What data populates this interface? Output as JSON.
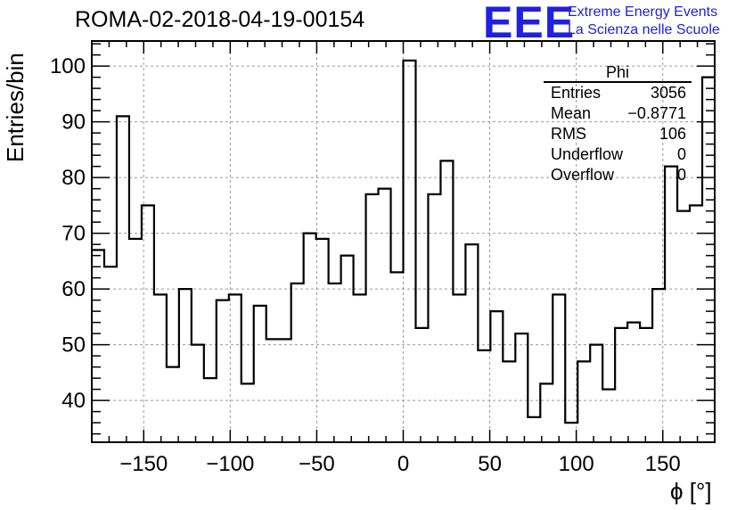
{
  "title": "ROMA-02-2018-04-19-00154",
  "logo": {
    "mark": "EEE",
    "line1": "Extreme Energy Events",
    "line2": "La Scienza nelle Scuole",
    "color": "#2020e0"
  },
  "stats": {
    "name": "Phi",
    "rows": [
      {
        "label": "Entries",
        "value": "3056"
      },
      {
        "label": "Mean",
        "value": "−0.8771"
      },
      {
        "label": "RMS",
        "value": "106"
      },
      {
        "label": "Underflow",
        "value": "0"
      },
      {
        "label": "Overflow",
        "value": "0"
      }
    ]
  },
  "chart_data": {
    "type": "histogram",
    "title": "ROMA-02-2018-04-19-00154",
    "xlabel": "ϕ [°]",
    "ylabel": "Entries/bin",
    "xlim": [
      -180,
      180
    ],
    "ylim": [
      32.5,
      104.5
    ],
    "grid": true,
    "bin_width": 7.2,
    "xticks": [
      -150,
      -100,
      -50,
      0,
      50,
      100,
      150
    ],
    "xtick_labels": [
      "−150",
      "−100",
      "−50",
      "0",
      "50",
      "100",
      "150"
    ],
    "yticks": [
      40,
      50,
      60,
      70,
      80,
      90,
      100
    ],
    "ytick_labels": [
      "40",
      "50",
      "60",
      "70",
      "80",
      "90",
      "100"
    ],
    "values": [
      67,
      64,
      91,
      69,
      75,
      59,
      46,
      60,
      50,
      44,
      58,
      59,
      43,
      57,
      51,
      51,
      61,
      70,
      69,
      61,
      66,
      59,
      77,
      78,
      63,
      101,
      53,
      77,
      83,
      59,
      68,
      49,
      56,
      47,
      52,
      37,
      43,
      59,
      36,
      47,
      50,
      42,
      53,
      54,
      53,
      60,
      82,
      74,
      75,
      98
    ]
  }
}
